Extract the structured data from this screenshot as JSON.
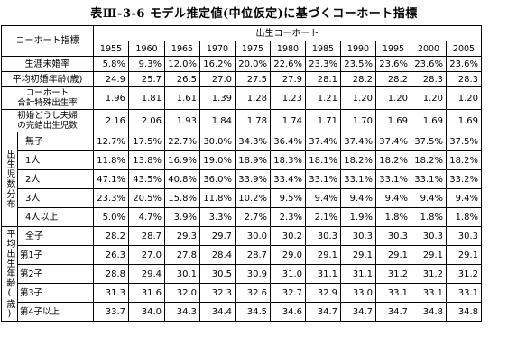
{
  "title": "表Ⅲ-3-6 モデル推定値(中位仮定)に基づくコーホート指標",
  "header": {
    "indicator_label": "コーホート指標",
    "cohort_label": "出生コーホート",
    "years": [
      "1955",
      "1960",
      "1965",
      "1970",
      "1975",
      "1980",
      "1985",
      "1990",
      "1995",
      "2000",
      "2005"
    ]
  },
  "rows": {
    "unmarried": {
      "label": "生涯未婚率",
      "values": [
        "5.8%",
        "9.3%",
        "12.0%",
        "16.2%",
        "20.0%",
        "22.6%",
        "23.3%",
        "23.5%",
        "23.6%",
        "23.6%",
        "23.6%"
      ]
    },
    "first_marriage_age": {
      "label": "平均初婚年齢(歳)",
      "values": [
        "24.9",
        "25.7",
        "26.5",
        "27.0",
        "27.5",
        "27.9",
        "28.1",
        "28.2",
        "28.2",
        "28.3",
        "28.3"
      ]
    },
    "cohort_tfr": {
      "label_line1": "コーホート",
      "label_line2": "合計特殊出生率",
      "values": [
        "1.96",
        "1.81",
        "1.61",
        "1.39",
        "1.28",
        "1.23",
        "1.21",
        "1.20",
        "1.20",
        "1.20",
        "1.20"
      ]
    },
    "completed_births": {
      "label_line1": "初婚どうし夫婦",
      "label_line2": "の完結出生児数",
      "values": [
        "2.16",
        "2.06",
        "1.93",
        "1.84",
        "1.78",
        "1.74",
        "1.71",
        "1.70",
        "1.69",
        "1.69",
        "1.69"
      ]
    }
  },
  "birth_distribution": {
    "group_label": "出生児数分布",
    "items": [
      {
        "label": "無子",
        "values": [
          "12.7%",
          "17.5%",
          "22.7%",
          "30.0%",
          "34.3%",
          "36.4%",
          "37.4%",
          "37.4%",
          "37.4%",
          "37.5%",
          "37.5%"
        ]
      },
      {
        "label": "1人",
        "values": [
          "11.8%",
          "13.8%",
          "16.9%",
          "19.0%",
          "18.9%",
          "18.3%",
          "18.1%",
          "18.2%",
          "18.2%",
          "18.2%",
          "18.2%"
        ]
      },
      {
        "label": "2人",
        "values": [
          "47.1%",
          "43.5%",
          "40.8%",
          "36.0%",
          "33.9%",
          "33.4%",
          "33.1%",
          "33.1%",
          "33.1%",
          "33.1%",
          "33.2%"
        ]
      },
      {
        "label": "3人",
        "values": [
          "23.3%",
          "20.5%",
          "15.8%",
          "11.8%",
          "10.2%",
          "9.5%",
          "9.4%",
          "9.4%",
          "9.4%",
          "9.4%",
          "9.4%"
        ]
      },
      {
        "label": "4人以上",
        "values": [
          "5.0%",
          "4.7%",
          "3.9%",
          "3.3%",
          "2.7%",
          "2.3%",
          "2.1%",
          "1.9%",
          "1.8%",
          "1.8%",
          "1.8%"
        ]
      }
    ]
  },
  "mean_birth_age": {
    "group_label": "平均出生年齢(歳)",
    "items": [
      {
        "label": "全子",
        "values": [
          "28.2",
          "28.7",
          "29.3",
          "29.7",
          "30.0",
          "30.2",
          "30.3",
          "30.3",
          "30.3",
          "30.3",
          "30.3"
        ]
      },
      {
        "label": "第1子",
        "values": [
          "26.3",
          "27.0",
          "27.8",
          "28.4",
          "28.7",
          "29.0",
          "29.1",
          "29.1",
          "29.1",
          "29.1",
          "29.1"
        ]
      },
      {
        "label": "第2子",
        "values": [
          "28.8",
          "29.4",
          "30.1",
          "30.5",
          "30.9",
          "31.0",
          "31.1",
          "31.1",
          "31.2",
          "31.2",
          "31.2"
        ]
      },
      {
        "label": "第3子",
        "values": [
          "31.3",
          "31.6",
          "32.0",
          "32.3",
          "32.6",
          "32.7",
          "32.9",
          "33.0",
          "33.1",
          "33.1",
          "33.1"
        ]
      },
      {
        "label": "第4子以上",
        "values": [
          "33.7",
          "34.0",
          "34.3",
          "34.4",
          "34.5",
          "34.6",
          "34.7",
          "34.7",
          "34.7",
          "34.8",
          "34.8"
        ]
      }
    ]
  }
}
